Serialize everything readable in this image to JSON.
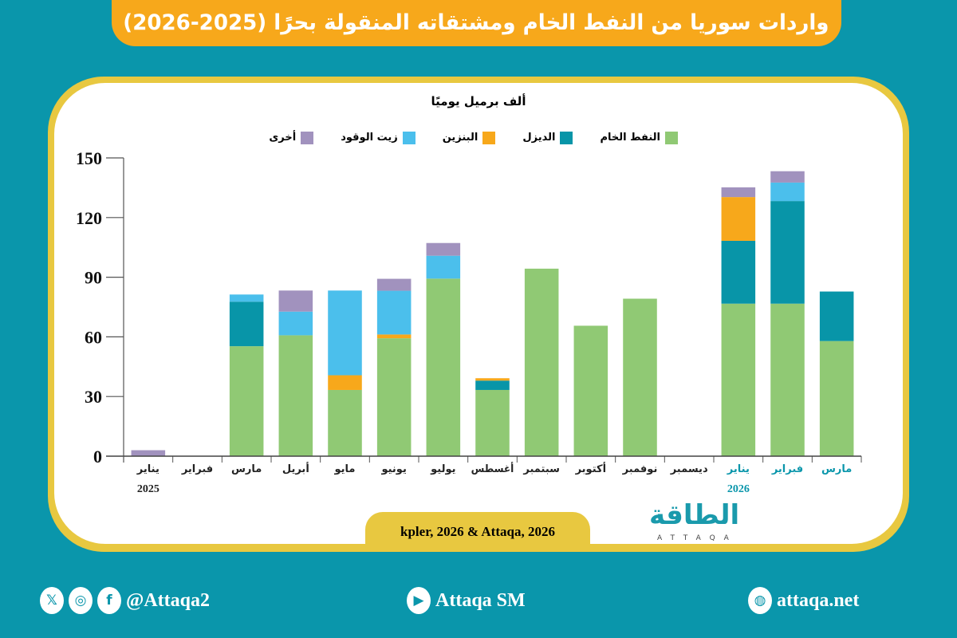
{
  "header": {
    "title": "واردات سوريا من النفط الخام ومشتقاته المنقولة بحرًا (2025-2026)"
  },
  "source": "kpler, 2026 & Attaqa, 2026",
  "logo": {
    "arabic": "الطاقة",
    "latin": "ATTAQA"
  },
  "footer": {
    "social_handle": "@Attaqa2",
    "youtube": "Attaqa SM",
    "website": "attaqa.net",
    "icons": [
      "x-icon",
      "instagram-icon",
      "facebook-icon",
      "youtube-icon",
      "globe-icon"
    ]
  },
  "chart_data": {
    "type": "bar",
    "stacked": true,
    "ylabel": "ألف برميل يوميًا",
    "ylim": [
      0,
      150
    ],
    "yticks": [
      0,
      30,
      60,
      90,
      120,
      150
    ],
    "grid": false,
    "legend_placement": "top",
    "categories": [
      "يناير",
      "فبراير",
      "مارس",
      "أبريل",
      "مايو",
      "يونيو",
      "يوليو",
      "أغسطس",
      "سبتمبر",
      "أكتوبر",
      "نوفمبر",
      "ديسمبر",
      "يناير",
      "فبراير",
      "مارس"
    ],
    "year_labels": [
      {
        "index": 0,
        "label": "2025"
      },
      {
        "index": 12,
        "label": "2026"
      }
    ],
    "highlight_from_index": 12,
    "highlight_color": "#0a96ab",
    "series": [
      {
        "name": "النفط الخام",
        "color": "#90c974",
        "values": [
          0,
          0,
          55.3,
          60.8,
          33.3,
          59.3,
          89.3,
          33.3,
          94.3,
          65.6,
          79.2,
          0,
          76.7,
          76.7,
          57.9
        ]
      },
      {
        "name": "الديزل",
        "color": "#0895a8",
        "values": [
          0,
          0,
          22.4,
          0,
          0,
          0,
          0,
          4.7,
          0,
          0,
          0,
          0,
          31.6,
          51.6,
          24.9
        ]
      },
      {
        "name": "البنزين",
        "color": "#f7a81b",
        "values": [
          0,
          0,
          0,
          0,
          7.4,
          1.9,
          0,
          1.2,
          0,
          0,
          0,
          0,
          22,
          0,
          0
        ]
      },
      {
        "name": "زيت الوقود",
        "color": "#4bbfec",
        "values": [
          0,
          0,
          3.6,
          11.9,
          42.6,
          22,
          11.5,
          0,
          0,
          0,
          0,
          0,
          0,
          9.3,
          0
        ]
      },
      {
        "name": "أخرى",
        "color": "#a192be",
        "values": [
          3,
          0,
          0,
          10.6,
          0,
          6,
          6.4,
          0,
          0,
          0,
          0,
          0,
          4.9,
          5.7,
          0
        ]
      }
    ]
  }
}
